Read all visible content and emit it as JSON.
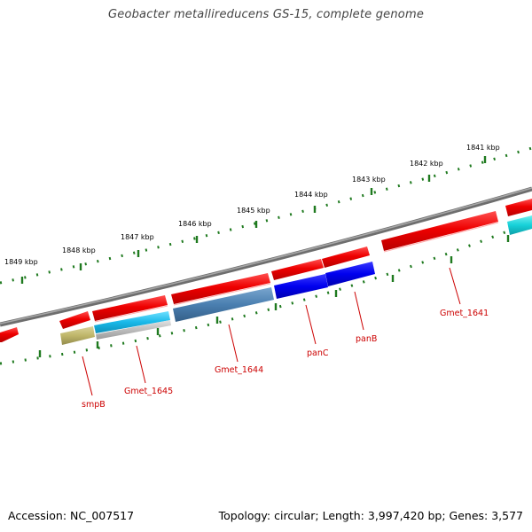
{
  "title": "Geobacter metallireducens GS-15, complete genome",
  "footer": {
    "accession": "Accession: NC_007517",
    "summary": "Topology: circular; Length: 3,997,420 bp; Genes: 3,577"
  },
  "scale_labels": [
    "1849 kbp",
    "1848 kbp",
    "1847 kbp",
    "1846 kbp",
    "1845 kbp",
    "1844 kbp",
    "1843 kbp",
    "1842 kbp",
    "1841 kbp"
  ],
  "gene_labels": [
    "smpB",
    "Gmet_1645",
    "Gmet_1644",
    "panC",
    "panB",
    "Gmet_1641"
  ],
  "colors": {
    "backbone": "#7a7a7a",
    "scale_ticks": "#1f7a1f",
    "gene_red": "#ee0000",
    "cds_blue": "#0000ee",
    "cds_steel": "#4a7fb0",
    "cds_cyan": "#18b8e8",
    "cds_olive": "#bfb66a",
    "cds_grey": "#b8b8b8",
    "label": "#cc0000"
  }
}
